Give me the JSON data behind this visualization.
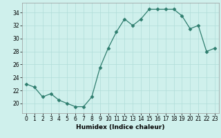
{
  "x": [
    0,
    1,
    2,
    3,
    4,
    5,
    6,
    7,
    8,
    9,
    10,
    11,
    12,
    13,
    14,
    15,
    16,
    17,
    18,
    19,
    20,
    21,
    22,
    23
  ],
  "y": [
    23,
    22.5,
    21,
    21.5,
    20.5,
    20,
    19.5,
    19.5,
    21,
    25.5,
    28.5,
    31,
    33,
    32,
    33,
    34.5,
    34.5,
    34.5,
    34.5,
    33.5,
    31.5,
    32,
    28,
    28.5
  ],
  "line_color": "#2e7d6e",
  "marker": "D",
  "marker_size": 2.5,
  "bg_color": "#cff0ec",
  "grid_color": "#b0ddd8",
  "xlabel": "Humidex (Indice chaleur)",
  "xlim": [
    -0.5,
    23.5
  ],
  "ylim": [
    18.5,
    35.5
  ],
  "yticks": [
    20,
    22,
    24,
    26,
    28,
    30,
    32,
    34
  ],
  "xticks": [
    0,
    1,
    2,
    3,
    4,
    5,
    6,
    7,
    8,
    9,
    10,
    11,
    12,
    13,
    14,
    15,
    16,
    17,
    18,
    19,
    20,
    21,
    22,
    23
  ],
  "label_fontsize": 6.5,
  "tick_fontsize": 5.5
}
